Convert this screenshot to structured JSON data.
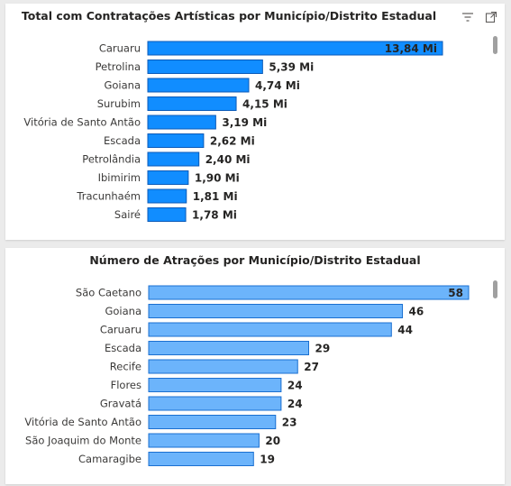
{
  "panels": [
    {
      "title": "Total com Contratações Artísticas por Município/Distrito Estadual",
      "has_header_icons": true
    },
    {
      "title": "Número de Atrações por Município/Distrito Estadual",
      "has_header_icons": false
    }
  ],
  "icons": {
    "filter": "filter-icon",
    "focus": "focus-mode-icon"
  },
  "chart_data": [
    {
      "type": "bar",
      "orientation": "horizontal",
      "title": "Total com Contratações Artísticas por Município/Distrito Estadual",
      "categories": [
        "Caruaru",
        "Petrolina",
        "Goiana",
        "Surubim",
        "Vitória de Santo Antão",
        "Escada",
        "Petrolândia",
        "Ibimirim",
        "Tracunhaém",
        "Sairé"
      ],
      "values": [
        13.84,
        5.39,
        4.74,
        4.15,
        3.19,
        2.62,
        2.4,
        1.9,
        1.81,
        1.78
      ],
      "labels": [
        "13,84 Mi",
        "5,39 Mi",
        "4,74 Mi",
        "4,15 Mi",
        "3,19 Mi",
        "2,62 Mi",
        "2,40 Mi",
        "1,90 Mi",
        "1,81 Mi",
        "1,78 Mi"
      ],
      "xlim": [
        0,
        13.84
      ],
      "bar_color": "#118dff",
      "bar_border": "#0a5ab8"
    },
    {
      "type": "bar",
      "orientation": "horizontal",
      "title": "Número de Atrações por Município/Distrito Estadual",
      "categories": [
        "São Caetano",
        "Goiana",
        "Caruaru",
        "Escada",
        "Recife",
        "Flores",
        "Gravatá",
        "Vitória de Santo Antão",
        "São Joaquim do Monte",
        "Camaragibe"
      ],
      "values": [
        58,
        46,
        44,
        29,
        27,
        24,
        24,
        23,
        20,
        19
      ],
      "labels": [
        "58",
        "46",
        "44",
        "29",
        "27",
        "24",
        "24",
        "23",
        "20",
        "19"
      ],
      "xlim": [
        0,
        58
      ],
      "bar_color": "#6cb4fb",
      "bar_border": "#1a6fd0"
    }
  ]
}
